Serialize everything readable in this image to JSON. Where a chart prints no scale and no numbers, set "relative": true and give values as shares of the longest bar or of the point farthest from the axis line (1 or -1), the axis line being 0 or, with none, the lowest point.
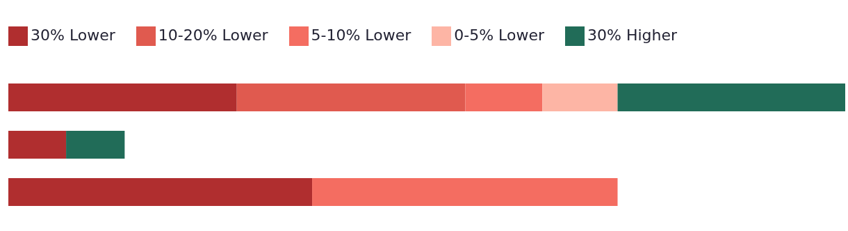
{
  "chart_data": {
    "type": "bar",
    "orientation": "horizontal",
    "stacked": true,
    "relative": true,
    "legend": "top left",
    "categories": [
      null,
      null,
      null
    ],
    "series": [
      {
        "name": "30% Lower",
        "color": "#b02e2f",
        "values": [
          0.273,
          0.069,
          0.363
        ]
      },
      {
        "name": "10-20% Lower",
        "color": "#e05a4f",
        "values": [
          0.273,
          null,
          null
        ]
      },
      {
        "name": "5-10% Lower",
        "color": "#f46d61",
        "values": [
          0.092,
          null,
          0.365
        ]
      },
      {
        "name": "0-5% Lower",
        "color": "#fdb5a5",
        "values": [
          0.09,
          null,
          null
        ]
      },
      {
        "name": "30% Higher",
        "color": "#216c58",
        "values": [
          0.272,
          0.07,
          null
        ]
      }
    ]
  }
}
